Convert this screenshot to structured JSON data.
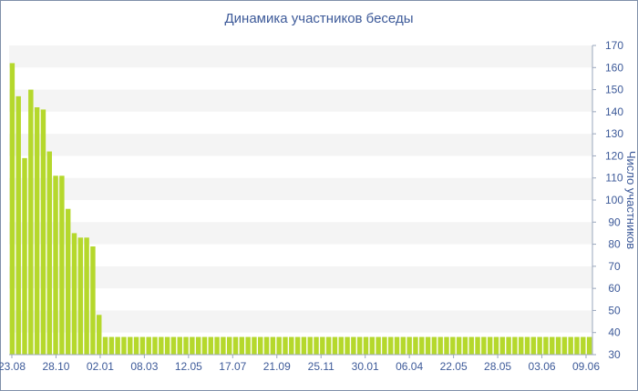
{
  "colors": {
    "bar": "#b5d82c",
    "axis_text": "#3d5a99",
    "band": "#f4f4f4",
    "border": "#7f8fa9"
  },
  "chart_data": {
    "type": "bar",
    "title": "Динамика участников беседы",
    "xlabel": "",
    "ylabel": "Число участников",
    "ylim": [
      30,
      170
    ],
    "y_ticks": [
      30,
      40,
      50,
      60,
      70,
      80,
      90,
      100,
      110,
      120,
      130,
      140,
      150,
      160,
      170
    ],
    "y_axis_position": "right",
    "grid": "alternating horizontal bands",
    "legend": "none",
    "x_tick_labels": [
      "23.08",
      "28.10",
      "02.01",
      "08.03",
      "12.05",
      "17.07",
      "21.09",
      "25.11",
      "30.01",
      "06.04",
      "22.05",
      "28.05",
      "03.06",
      "09.06"
    ],
    "values": [
      162,
      147,
      119,
      150,
      142,
      141,
      122,
      111,
      111,
      96,
      85,
      83,
      83,
      79,
      48,
      38,
      38,
      38,
      38,
      38,
      38,
      38,
      38,
      38,
      38,
      38,
      38,
      38,
      38,
      38,
      38,
      38,
      38,
      38,
      38,
      38,
      38,
      38,
      38,
      38,
      38,
      38,
      38,
      38,
      38,
      38,
      38,
      38,
      38,
      38,
      38,
      38,
      38,
      38,
      38,
      38,
      38,
      38,
      38,
      38,
      38,
      38,
      38,
      38,
      38,
      38,
      38,
      38,
      38,
      38,
      38,
      38,
      38,
      38,
      38,
      38,
      38,
      38,
      38,
      38,
      38,
      38,
      38,
      38,
      38,
      38,
      38,
      38,
      38,
      38,
      38,
      38,
      38,
      38
    ]
  }
}
